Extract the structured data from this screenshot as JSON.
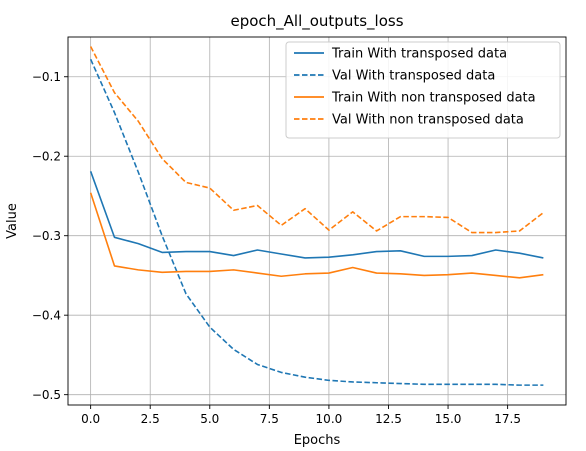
{
  "chart_data": {
    "type": "line",
    "title": "epoch_All_outputs_loss",
    "xlabel": "Epochs",
    "ylabel": "Value",
    "xlim": [
      -0.95,
      19.95
    ],
    "ylim": [
      -0.513,
      -0.05
    ],
    "xticks": [
      0,
      2.5,
      5,
      7.5,
      10,
      12.5,
      15,
      17.5
    ],
    "xtick_labels": [
      "0.0",
      "2.5",
      "5.0",
      "7.5",
      "10.0",
      "12.5",
      "15.0",
      "17.5"
    ],
    "yticks": [
      -0.1,
      -0.2,
      -0.3,
      -0.4,
      -0.5
    ],
    "ytick_labels": [
      "−0.1",
      "−0.2",
      "−0.3",
      "−0.4",
      "−0.5"
    ],
    "grid": true,
    "legend_position": "top-right",
    "x": [
      0,
      1,
      2,
      3,
      4,
      5,
      6,
      7,
      8,
      9,
      10,
      11,
      12,
      13,
      14,
      15,
      16,
      17,
      18,
      19
    ],
    "series": [
      {
        "name": "Train With transposed data",
        "color": "#1f77b4",
        "style": "solid",
        "values": [
          -0.219,
          -0.302,
          -0.31,
          -0.321,
          -0.32,
          -0.32,
          -0.325,
          -0.318,
          -0.323,
          -0.328,
          -0.327,
          -0.324,
          -0.32,
          -0.319,
          -0.326,
          -0.326,
          -0.325,
          -0.318,
          -0.322,
          -0.328
        ]
      },
      {
        "name": "Val With transposed data",
        "color": "#1f77b4",
        "style": "dashed",
        "values": [
          -0.078,
          -0.145,
          -0.22,
          -0.3,
          -0.373,
          -0.415,
          -0.443,
          -0.462,
          -0.472,
          -0.478,
          -0.482,
          -0.484,
          -0.485,
          -0.486,
          -0.487,
          -0.487,
          -0.487,
          -0.487,
          -0.488,
          -0.488
        ]
      },
      {
        "name": "Train With non transposed data",
        "color": "#ff7f0e",
        "style": "solid",
        "values": [
          -0.246,
          -0.338,
          -0.343,
          -0.346,
          -0.345,
          -0.345,
          -0.343,
          -0.347,
          -0.351,
          -0.348,
          -0.347,
          -0.34,
          -0.347,
          -0.348,
          -0.35,
          -0.349,
          -0.347,
          -0.35,
          -0.353,
          -0.349
        ]
      },
      {
        "name": "Val With non transposed data",
        "color": "#ff7f0e",
        "style": "dashed",
        "values": [
          -0.062,
          -0.12,
          -0.156,
          -0.203,
          -0.233,
          -0.24,
          -0.268,
          -0.262,
          -0.287,
          -0.266,
          -0.293,
          -0.27,
          -0.294,
          -0.276,
          -0.276,
          -0.277,
          -0.296,
          -0.296,
          -0.294,
          -0.271
        ]
      }
    ]
  }
}
